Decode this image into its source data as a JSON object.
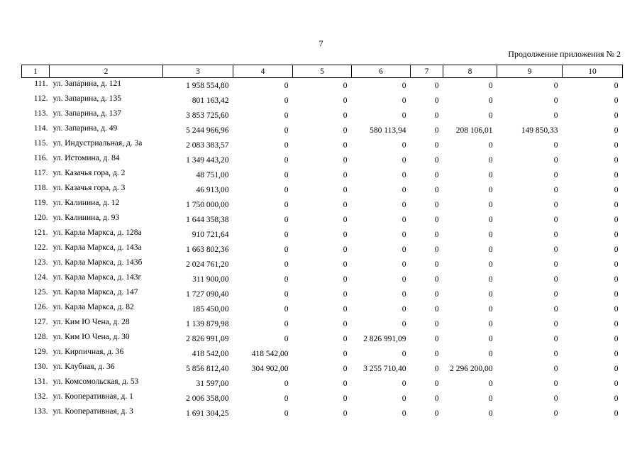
{
  "page_number": "7",
  "subtitle": "Продолжение приложения № 2",
  "table": {
    "headers": [
      "1",
      "2",
      "3",
      "4",
      "5",
      "6",
      "7",
      "8",
      "9",
      "10"
    ],
    "rows": [
      [
        "111.",
        "ул. Запарина, д. 121",
        "1 958 554,80",
        "0",
        "0",
        "0",
        "0",
        "0",
        "0",
        "0"
      ],
      [
        "112.",
        "ул. Запарина, д. 135",
        "801 163,42",
        "0",
        "0",
        "0",
        "0",
        "0",
        "0",
        "0"
      ],
      [
        "113.",
        "ул. Запарина, д. 137",
        "3 853 725,60",
        "0",
        "0",
        "0",
        "0",
        "0",
        "0",
        "0"
      ],
      [
        "114.",
        "ул. Запарина, д. 49",
        "5 244 966,96",
        "0",
        "0",
        "580 113,94",
        "0",
        "208 106,01",
        "149 850,33",
        "0"
      ],
      [
        "115.",
        "ул. Индустриальная, д. 3а",
        "2 083 383,57",
        "0",
        "0",
        "0",
        "0",
        "0",
        "0",
        "0"
      ],
      [
        "116.",
        "ул. Истомина, д. 84",
        "1 349 443,20",
        "0",
        "0",
        "0",
        "0",
        "0",
        "0",
        "0"
      ],
      [
        "117.",
        "ул. Казачья гора, д. 2",
        "48 751,00",
        "0",
        "0",
        "0",
        "0",
        "0",
        "0",
        "0"
      ],
      [
        "118.",
        "ул. Казачья гора, д. 3",
        "46 913,00",
        "0",
        "0",
        "0",
        "0",
        "0",
        "0",
        "0"
      ],
      [
        "119.",
        "ул. Калинина, д. 12",
        "1 750 000,00",
        "0",
        "0",
        "0",
        "0",
        "0",
        "0",
        "0"
      ],
      [
        "120.",
        "ул. Калинина, д. 93",
        "1 644 358,38",
        "0",
        "0",
        "0",
        "0",
        "0",
        "0",
        "0"
      ],
      [
        "121.",
        "ул. Карла Маркса, д. 128а",
        "910 721,64",
        "0",
        "0",
        "0",
        "0",
        "0",
        "0",
        "0"
      ],
      [
        "122.",
        "ул. Карла Маркса, д. 143а",
        "1 663 802,36",
        "0",
        "0",
        "0",
        "0",
        "0",
        "0",
        "0"
      ],
      [
        "123.",
        "ул. Карла Маркса, д. 143б",
        "2 024 761,20",
        "0",
        "0",
        "0",
        "0",
        "0",
        "0",
        "0"
      ],
      [
        "124.",
        "ул. Карла Маркса, д. 143г",
        "311 900,00",
        "0",
        "0",
        "0",
        "0",
        "0",
        "0",
        "0"
      ],
      [
        "125.",
        "ул. Карла Маркса, д. 147",
        "1 727 090,40",
        "0",
        "0",
        "0",
        "0",
        "0",
        "0",
        "0"
      ],
      [
        "126.",
        "ул. Карла Маркса, д. 82",
        "185 450,00",
        "0",
        "0",
        "0",
        "0",
        "0",
        "0",
        "0"
      ],
      [
        "127.",
        "ул. Ким Ю Чена, д. 28",
        "1 139 879,98",
        "0",
        "0",
        "0",
        "0",
        "0",
        "0",
        "0"
      ],
      [
        "128.",
        "ул. Ким Ю Чена, д. 30",
        "2 826 991,09",
        "0",
        "0",
        "2 826 991,09",
        "0",
        "0",
        "0",
        "0"
      ],
      [
        "129.",
        "ул. Кирпичная, д. 36",
        "418 542,00",
        "418 542,00",
        "0",
        "0",
        "0",
        "0",
        "0",
        "0"
      ],
      [
        "130.",
        "ул. Клубная, д. 36",
        "5 856 812,40",
        "304 902,00",
        "0",
        "3 255 710,40",
        "0",
        "2 296 200,00",
        "0",
        "0"
      ],
      [
        "131.",
        "ул. Комсомольская, д. 53",
        "31 597,00",
        "0",
        "0",
        "0",
        "0",
        "0",
        "0",
        "0"
      ],
      [
        "132.",
        "ул. Кооперативная, д. 1",
        "2 006 358,00",
        "0",
        "0",
        "0",
        "0",
        "0",
        "0",
        "0"
      ],
      [
        "133.",
        "ул. Кооперативная, д. 3",
        "1 691 304,25",
        "0",
        "0",
        "0",
        "0",
        "0",
        "0",
        "0"
      ]
    ]
  }
}
